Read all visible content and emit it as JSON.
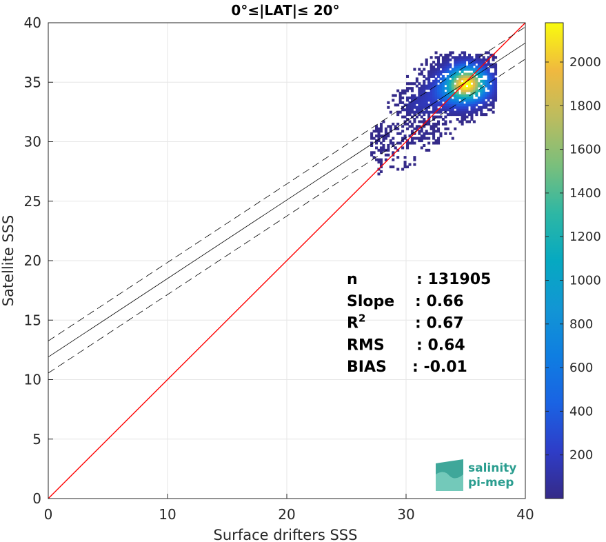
{
  "chart_data": {
    "type": "heatmap",
    "title": "0°≤|LAT|≤ 20°",
    "xlabel": "Surface drifters SSS",
    "ylabel": "Satellite SSS",
    "xlim": [
      0,
      40
    ],
    "ylim": [
      0,
      40
    ],
    "xticks": [
      0,
      10,
      20,
      30,
      40
    ],
    "yticks": [
      0,
      5,
      10,
      15,
      20,
      25,
      30,
      35,
      40
    ],
    "grid": true,
    "colorbar": {
      "ticks": [
        200,
        400,
        600,
        800,
        1000,
        1200,
        1400,
        1600,
        1800,
        2000
      ],
      "range": [
        0,
        2180
      ],
      "colormap": "parula"
    },
    "identity_line": {
      "color": "#ff0000",
      "x": [
        0,
        40
      ],
      "y": [
        0,
        40
      ]
    },
    "regression": {
      "intercept": 11.9,
      "slope": 0.66,
      "offset": 1.35
    },
    "stats": [
      {
        "name": "n",
        "value": ": 131905"
      },
      {
        "name": "Slope",
        "value": ": 0.66"
      },
      {
        "name": "R",
        "sup": "2",
        "value": ": 0.67"
      },
      {
        "name": "RMS",
        "value": ": 0.64"
      },
      {
        "name": "BIAS",
        "value": ": -0.01"
      }
    ],
    "density_clusters": [
      {
        "x": 35.0,
        "y": 34.8,
        "spread_x": 1.1,
        "spread_y": 0.9,
        "peak": 2150
      },
      {
        "x": 33.5,
        "y": 34.0,
        "spread_x": 1.3,
        "spread_y": 0.9,
        "peak": 350
      },
      {
        "x": 31.0,
        "y": 33.0,
        "spread_x": 0.9,
        "spread_y": 0.6,
        "peak": 120
      },
      {
        "x": 30.5,
        "y": 30.5,
        "spread_x": 1.5,
        "spread_y": 0.5,
        "peak": 40
      },
      {
        "x": 28.0,
        "y": 29.5,
        "spread_x": 1.5,
        "spread_y": 1.2,
        "peak": 15
      }
    ]
  },
  "logo": {
    "line1": "salinity",
    "line2": "pi-mep"
  }
}
